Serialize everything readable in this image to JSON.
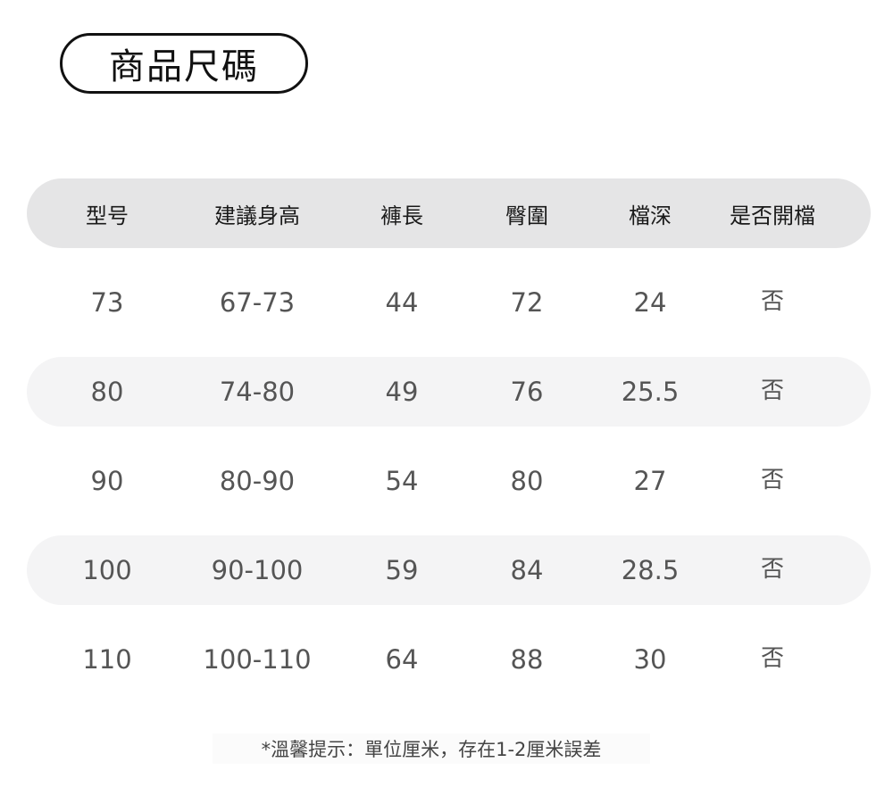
{
  "title": "商品尺碼",
  "colors": {
    "header_bg": "#e5e5e6",
    "alt_row_bg": "#f4f4f5",
    "text": "#555555"
  },
  "table": {
    "headers": [
      "型号",
      "建議身高",
      "褲長",
      "臀圍",
      "檔深",
      "是否開檔"
    ],
    "rows": [
      [
        "73",
        "67-73",
        "44",
        "72",
        "24",
        "否"
      ],
      [
        "80",
        "74-80",
        "49",
        "76",
        "25.5",
        "否"
      ],
      [
        "90",
        "80-90",
        "54",
        "80",
        "27",
        "否"
      ],
      [
        "100",
        "90-100",
        "59",
        "84",
        "28.5",
        "否"
      ],
      [
        "110",
        "100-110",
        "64",
        "88",
        "30",
        "否"
      ]
    ]
  },
  "note": "*溫馨提示：單位厘米，存在1-2厘米誤差"
}
